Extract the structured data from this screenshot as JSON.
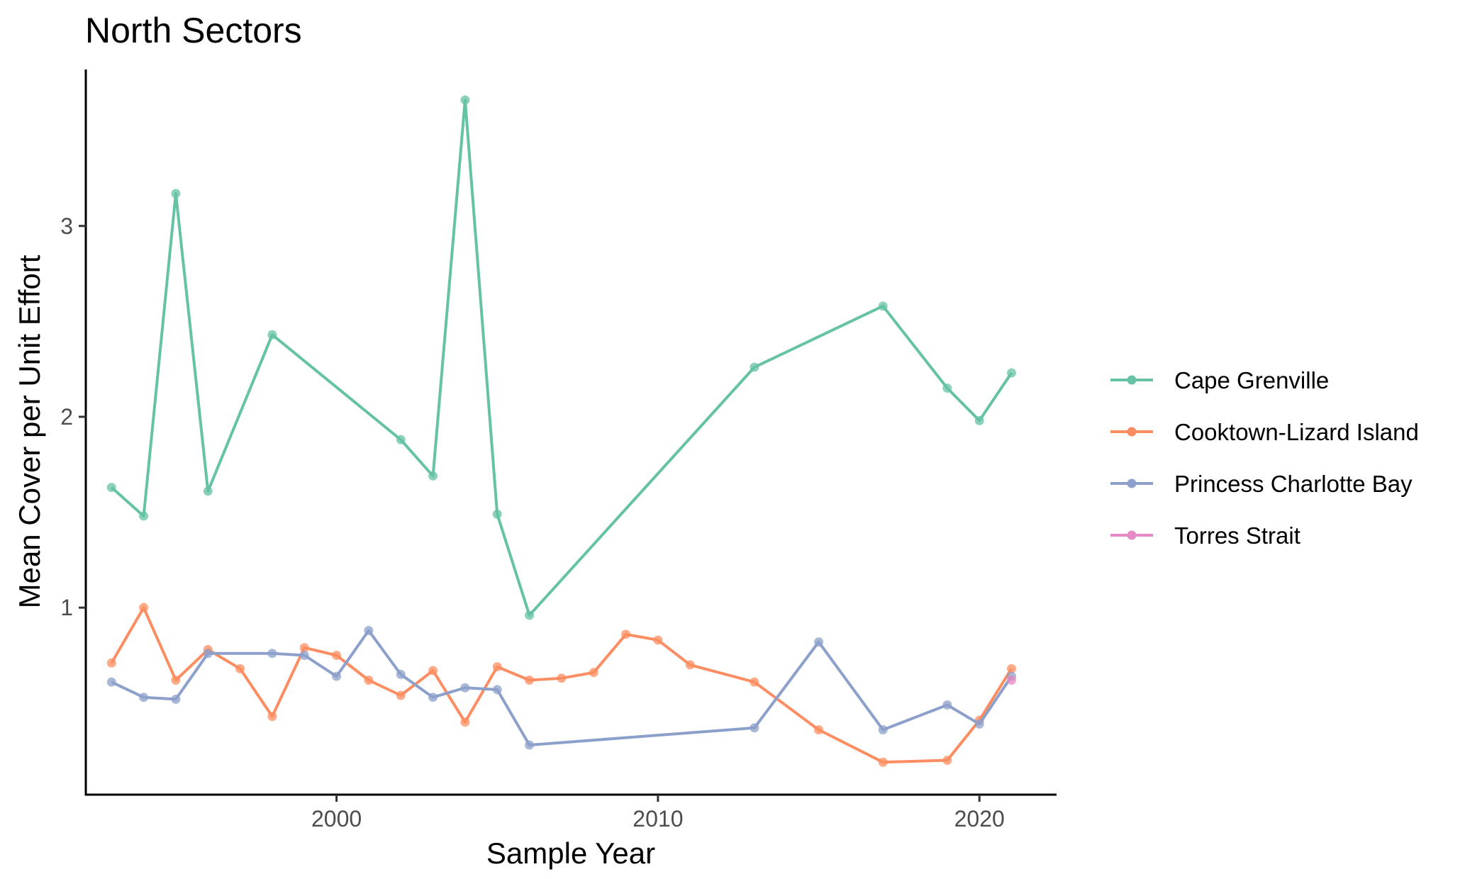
{
  "chart_data": {
    "type": "line",
    "title": "North Sectors",
    "xlabel": "Sample Year",
    "ylabel": "Mean Cover per Unit Effort",
    "xlim": [
      1992.2,
      2022.4
    ],
    "ylim": [
      0.02,
      3.82
    ],
    "x_ticks": [
      2000,
      2010,
      2020
    ],
    "y_ticks": [
      1,
      2,
      3
    ],
    "grid": false,
    "legend_position": "right",
    "series": [
      {
        "name": "Cape Grenville",
        "color": "#66C2A5",
        "x": [
          1993,
          1994,
          1995,
          1996,
          1998,
          2002,
          2003,
          2004,
          2005,
          2006,
          2013,
          2017,
          2019,
          2020,
          2021
        ],
        "y": [
          1.63,
          1.48,
          3.17,
          1.61,
          2.43,
          1.88,
          1.69,
          3.66,
          1.49,
          0.96,
          2.26,
          2.58,
          2.15,
          1.98,
          2.23
        ]
      },
      {
        "name": "Cooktown-Lizard Island",
        "color": "#FC8D62",
        "x": [
          1993,
          1994,
          1995,
          1996,
          1997,
          1998,
          1999,
          2000,
          2001,
          2002,
          2003,
          2004,
          2005,
          2006,
          2007,
          2008,
          2009,
          2010,
          2011,
          2013,
          2015,
          2017,
          2019,
          2020,
          2021
        ],
        "y": [
          0.71,
          1.0,
          0.62,
          0.78,
          0.68,
          0.43,
          0.79,
          0.75,
          0.62,
          0.54,
          0.67,
          0.4,
          0.69,
          0.62,
          0.63,
          0.66,
          0.86,
          0.83,
          0.7,
          0.61,
          0.36,
          0.19,
          0.2,
          0.41,
          0.68
        ]
      },
      {
        "name": "Princess Charlotte Bay",
        "color": "#8DA0CB",
        "x": [
          1993,
          1994,
          1995,
          1996,
          1998,
          1999,
          2000,
          2001,
          2002,
          2003,
          2004,
          2005,
          2006,
          2013,
          2015,
          2017,
          2019,
          2020,
          2021
        ],
        "y": [
          0.61,
          0.53,
          0.52,
          0.76,
          0.76,
          0.75,
          0.64,
          0.88,
          0.65,
          0.53,
          0.58,
          0.57,
          0.28,
          0.37,
          0.82,
          0.36,
          0.49,
          0.39,
          0.64
        ]
      },
      {
        "name": "Torres Strait",
        "color": "#E78AC3",
        "x": [
          2021
        ],
        "y": [
          0.62
        ]
      }
    ]
  }
}
